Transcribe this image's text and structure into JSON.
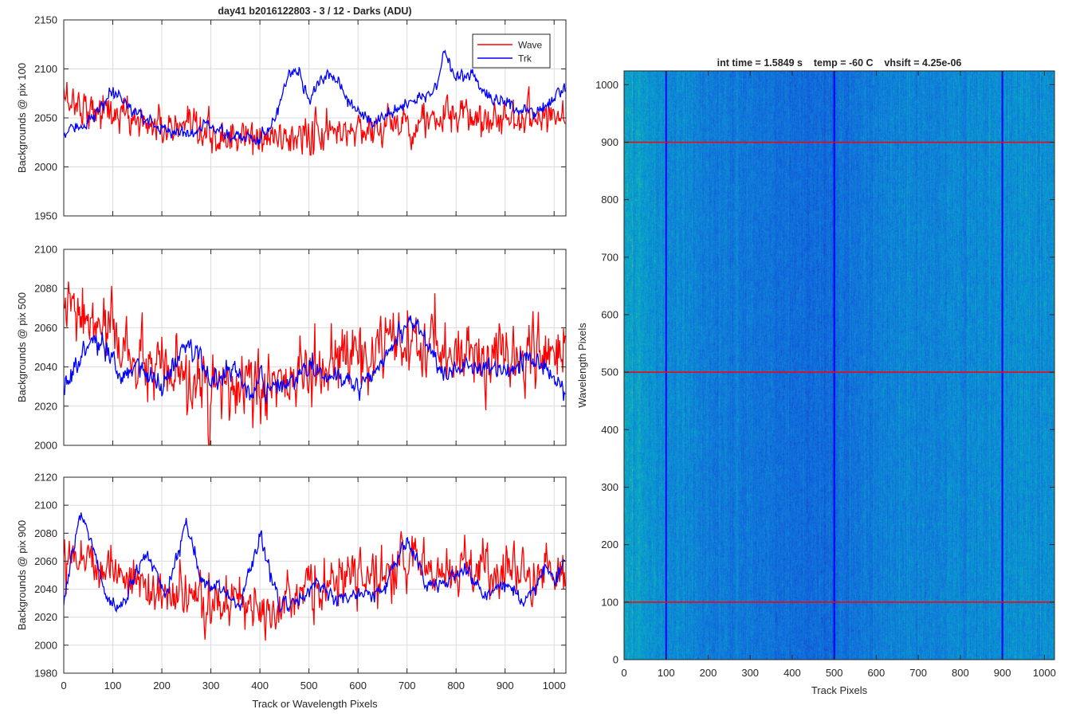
{
  "chart_data": [
    {
      "type": "line",
      "title": "day41 b2016122803 - 3 / 12 - Darks (ADU)",
      "xlabel": "",
      "ylabel": "Backgrounds @ pix 100",
      "xlim": [
        0,
        1024
      ],
      "ylim": [
        1950,
        2150
      ],
      "xticks": [
        0,
        100,
        200,
        300,
        400,
        500,
        600,
        700,
        800,
        900,
        1000
      ],
      "xtick_labels": [],
      "yticks": [
        1950,
        2000,
        2050,
        2100,
        2150
      ],
      "grid": true,
      "legend": {
        "placement": "top-right",
        "entries": [
          "Wave",
          "Trk"
        ]
      },
      "series": [
        {
          "name": "Wave",
          "color": "#ff0000",
          "mean": 2040,
          "noise": 14,
          "x": [
            0,
            40,
            100,
            200,
            300,
            400,
            500,
            600,
            700,
            800,
            900,
            1000,
            1024
          ],
          "y": [
            2072,
            2062,
            2055,
            2040,
            2030,
            2028,
            2032,
            2038,
            2045,
            2050,
            2050,
            2055,
            2052
          ]
        },
        {
          "name": "Trk",
          "color": "#0000ff",
          "mean": 2050,
          "noise": 5,
          "x": [
            0,
            30,
            60,
            100,
            150,
            200,
            250,
            300,
            350,
            400,
            430,
            460,
            480,
            500,
            530,
            560,
            590,
            630,
            680,
            720,
            760,
            775,
            800,
            830,
            870,
            910,
            960,
            1000,
            1024
          ],
          "y": [
            2032,
            2042,
            2050,
            2075,
            2055,
            2038,
            2035,
            2042,
            2030,
            2028,
            2050,
            2098,
            2098,
            2068,
            2092,
            2085,
            2060,
            2045,
            2060,
            2068,
            2082,
            2115,
            2088,
            2095,
            2068,
            2065,
            2055,
            2070,
            2082
          ]
        }
      ]
    },
    {
      "type": "line",
      "title": "",
      "xlabel": "",
      "ylabel": "Backgrounds @ pix 500",
      "xlim": [
        0,
        1024
      ],
      "ylim": [
        2000,
        2100
      ],
      "xticks": [
        0,
        100,
        200,
        300,
        400,
        500,
        600,
        700,
        800,
        900,
        1000
      ],
      "xtick_labels": [],
      "yticks": [
        2000,
        2020,
        2040,
        2060,
        2080,
        2100
      ],
      "grid": true,
      "series": [
        {
          "name": "Wave",
          "color": "#ff0000",
          "mean": 2040,
          "noise": 12,
          "x": [
            0,
            50,
            100,
            150,
            200,
            300,
            400,
            500,
            550,
            600,
            700,
            800,
            900,
            1000,
            1024
          ],
          "y": [
            2070,
            2062,
            2058,
            2042,
            2035,
            2028,
            2028,
            2036,
            2042,
            2045,
            2050,
            2048,
            2045,
            2048,
            2045
          ]
        },
        {
          "name": "Trk",
          "color": "#0000ff",
          "mean": 2035,
          "noise": 4,
          "x": [
            0,
            30,
            60,
            80,
            120,
            150,
            200,
            250,
            280,
            300,
            340,
            380,
            420,
            460,
            500,
            540,
            600,
            640,
            680,
            700,
            730,
            780,
            840,
            900,
            950,
            980,
            1000,
            1024
          ],
          "y": [
            2030,
            2042,
            2055,
            2050,
            2032,
            2042,
            2030,
            2052,
            2045,
            2030,
            2040,
            2028,
            2030,
            2032,
            2040,
            2035,
            2030,
            2040,
            2055,
            2062,
            2060,
            2035,
            2040,
            2038,
            2045,
            2040,
            2035,
            2025
          ]
        }
      ]
    },
    {
      "type": "line",
      "title": "",
      "xlabel": "Track or Wavelength Pixels",
      "ylabel": "Backgrounds @ pix 900",
      "xlim": [
        0,
        1024
      ],
      "ylim": [
        1980,
        2120
      ],
      "xticks": [
        0,
        100,
        200,
        300,
        400,
        500,
        600,
        700,
        800,
        900,
        1000
      ],
      "xtick_labels": [
        "0",
        "100",
        "200",
        "300",
        "400",
        "500",
        "600",
        "700",
        "800",
        "900",
        "1000"
      ],
      "yticks": [
        1980,
        2000,
        2020,
        2040,
        2060,
        2080,
        2100,
        2120
      ],
      "ytick_labels": [
        "1980",
        "2000",
        "2020",
        "2040",
        "2060",
        "2080",
        "2100",
        "2120"
      ],
      "grid": true,
      "series": [
        {
          "name": "Wave",
          "color": "#ff0000",
          "mean": 2045,
          "noise": 13,
          "x": [
            0,
            50,
            100,
            150,
            200,
            300,
            400,
            500,
            600,
            700,
            800,
            900,
            1000,
            1024
          ],
          "y": [
            2070,
            2062,
            2055,
            2045,
            2035,
            2030,
            2030,
            2038,
            2048,
            2058,
            2055,
            2052,
            2050,
            2050
          ]
        },
        {
          "name": "Trk",
          "color": "#0000ff",
          "mean": 2040,
          "noise": 4,
          "x": [
            0,
            35,
            60,
            90,
            120,
            150,
            170,
            210,
            250,
            280,
            320,
            360,
            400,
            440,
            480,
            520,
            560,
            600,
            650,
            700,
            740,
            780,
            820,
            860,
            900,
            940,
            980,
            1000,
            1024
          ],
          "y": [
            2030,
            2095,
            2070,
            2030,
            2028,
            2055,
            2065,
            2035,
            2090,
            2045,
            2040,
            2030,
            2078,
            2030,
            2030,
            2045,
            2032,
            2038,
            2038,
            2075,
            2042,
            2045,
            2055,
            2035,
            2045,
            2030,
            2055,
            2045,
            2060
          ]
        }
      ]
    },
    {
      "type": "heatmap",
      "title": "int time = 1.5849 s    temp = -60 C    vhsift = 4.25e-06",
      "xlabel": "Track Pixels",
      "ylabel": "Wavelength Pixels",
      "xlim": [
        0,
        1024
      ],
      "ylim": [
        0,
        1024
      ],
      "xticks": [
        0,
        100,
        200,
        300,
        400,
        500,
        600,
        700,
        800,
        900,
        1000
      ],
      "xtick_labels": [
        "0",
        "100",
        "200",
        "300",
        "400",
        "500",
        "600",
        "700",
        "800",
        "900",
        "1000"
      ],
      "yticks": [
        0,
        100,
        200,
        300,
        400,
        500,
        600,
        700,
        800,
        900,
        1000
      ],
      "ytick_labels": [
        "0",
        "100",
        "200",
        "300",
        "400",
        "500",
        "600",
        "700",
        "800",
        "900",
        "1000"
      ],
      "grid": false,
      "colormap": "parula",
      "column_profile": {
        "x": [
          0,
          40,
          100,
          200,
          300,
          400,
          480,
          500,
          550,
          650,
          800,
          900,
          1024
        ],
        "level": [
          0.62,
          0.55,
          0.48,
          0.4,
          0.35,
          0.32,
          0.28,
          0.3,
          0.36,
          0.43,
          0.46,
          0.48,
          0.5
        ]
      },
      "marker_lines": {
        "vertical": {
          "color": "#0000ff",
          "x": [
            100,
            500,
            900
          ]
        },
        "horizontal": {
          "color": "#ff0000",
          "y": [
            100,
            500,
            900
          ]
        }
      }
    }
  ]
}
